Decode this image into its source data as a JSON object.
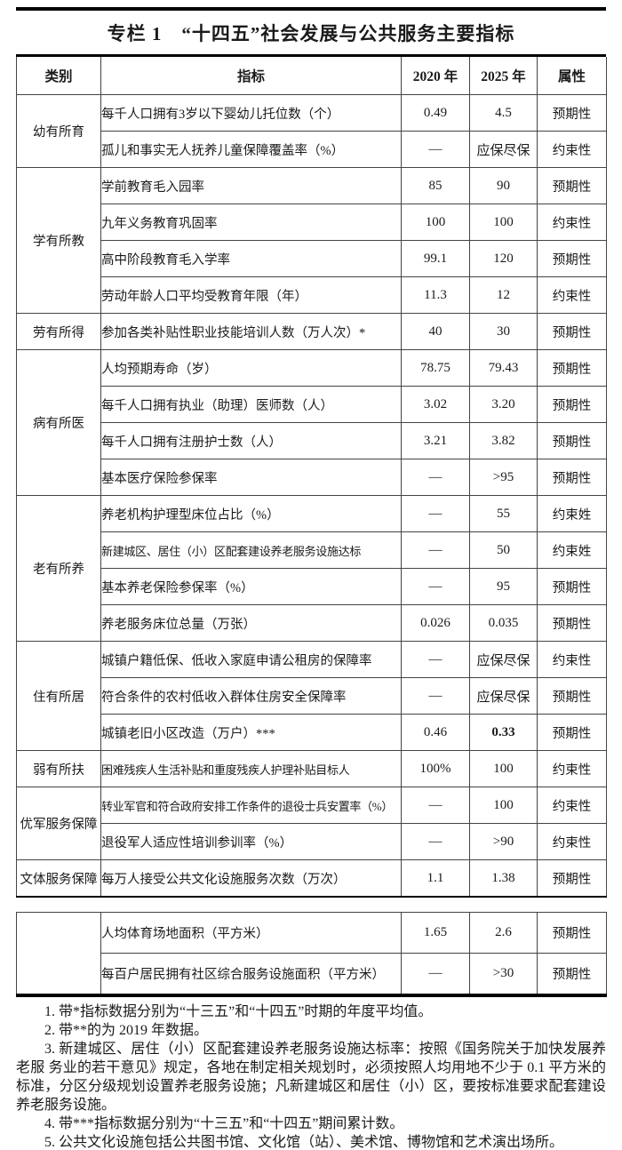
{
  "title": "专栏 1　“十四五”社会发展与公共服务主要指标",
  "table": {
    "headers": {
      "category": "类别",
      "indicator": "指标",
      "y2020": "2020 年",
      "y2025": "2025 年",
      "attribute": "属性"
    },
    "rows": [
      {
        "category": "幼有所育",
        "span": 2,
        "indicator": "每千人口拥有3岁以下婴幼儿托位数（个）",
        "v2020": "0.49",
        "v2025": "4.5",
        "attr": "预期性"
      },
      {
        "indicator": "孤儿和事实无人抚养儿童保障覆盖率（%）",
        "v2020": "—",
        "v2025": "应保尽保",
        "attr": "约束性"
      },
      {
        "category": "学有所教",
        "span": 4,
        "indicator": "学前教育毛入园率",
        "v2020": "85",
        "v2025": "90",
        "attr": "预期性"
      },
      {
        "indicator": "九年义务教育巩固率",
        "v2020": "100",
        "v2025": "100",
        "attr": "约束性"
      },
      {
        "indicator": "高中阶段教育毛入学率",
        "v2020": "99.1",
        "v2025": "120",
        "attr": "预期性"
      },
      {
        "indicator": "劳动年龄人口平均受教育年限（年）",
        "v2020": "11.3",
        "v2025": "12",
        "attr": "约束性"
      },
      {
        "category": "劳有所得",
        "span": 1,
        "indicator": "参加各类补贴性职业技能培训人数（万人次）*",
        "v2020": "40",
        "v2025": "30",
        "attr": "预期性"
      },
      {
        "category": "病有所医",
        "span": 4,
        "indicator": "人均预期寿命（岁）",
        "v2020": "78.75",
        "v2025": "79.43",
        "attr": "预期性"
      },
      {
        "indicator": "每千人口拥有执业（助理）医师数（人）",
        "v2020": "3.02",
        "v2025": "3.20",
        "attr": "预期性"
      },
      {
        "indicator": "每千人口拥有注册护士数（人）",
        "v2020": "3.21",
        "v2025": "3.82",
        "attr": "预期性"
      },
      {
        "indicator": "基本医疗保险参保率",
        "v2020": "—",
        "v2025": ">95",
        "attr": "预期性"
      },
      {
        "category": "老有所养",
        "span": 4,
        "indicator": "养老机构护理型床位占比（%）",
        "v2020": "—",
        "v2025": "55",
        "attr": "约束姓"
      },
      {
        "indicator": "新建城区、居住（小）区配套建设养老服务设施达标",
        "v2020": "—",
        "v2025": "50",
        "attr": "约束姓",
        "small": true
      },
      {
        "indicator": "基本养老保险参保率（%）",
        "v2020": "—",
        "v2025": "95",
        "attr": "预期性"
      },
      {
        "indicator": "养老服务床位总量（万张）",
        "v2020": "0.026",
        "v2025": "0.035",
        "attr": "预期性"
      },
      {
        "category": "住有所居",
        "span": 3,
        "indicator": "城镇户籍低保、低收入家庭申请公租房的保障率",
        "v2020": "—",
        "v2025": "应保尽保",
        "attr": "约束性"
      },
      {
        "indicator": "符合条件的农村低收入群体住房安全保障率",
        "v2020": "—",
        "v2025": "应保尽保",
        "attr": "预期性"
      },
      {
        "indicator": "城镇老旧小区改造（万户）***",
        "v2020": "0.46",
        "v2025": "0.33",
        "attr": "预期性",
        "bold2025": true
      },
      {
        "category": "弱有所扶",
        "span": 1,
        "indicator": "困难残疾人生活补贴和重度残疾人护理补贴目标人",
        "v2020": "100%",
        "v2025": "100",
        "attr": "约束性",
        "small": true
      },
      {
        "category": "优军服务保障",
        "span": 2,
        "indicator": "转业军官和符合政府安排工作条件的退役士兵安置率（%）",
        "v2020": "—",
        "v2025": "100",
        "attr": "约束性",
        "small": true
      },
      {
        "indicator": "退役军人适应性培训参训率（%）",
        "v2020": "—",
        "v2025": ">90",
        "attr": "约束性"
      },
      {
        "category": "文体服务保障",
        "span": 1,
        "indicator": "每万人接受公共文化设施服务次数（万次）",
        "v2020": "1.1",
        "v2025": "1.38",
        "attr": "预期性"
      }
    ],
    "rows2": [
      {
        "category": "",
        "span": 2,
        "indicator": "人均体育场地面积（平方米）",
        "v2020": "1.65",
        "v2025": "2.6",
        "attr": "预期性"
      },
      {
        "indicator": "每百户居民拥有社区综合服务设施面积（平方米）",
        "v2020": "—",
        "v2025": ">30",
        "attr": "预期性"
      }
    ]
  },
  "notes": [
    "1. 带*指标数据分别为“十三五”和“十四五”时期的年度平均值。",
    "2. 带**的为 2019 年数据。",
    "3. 新建城区、居住（小）区配套建设养老服务设施达标率：按照《国务院关于加快发展养老服 务业的若干意见》规定，各地在制定相关规划时，必须按照人均用地不少于 0.1 平方米的标准，分区分级规划设置养老服务设施；凡新建城区和居住（小）区，要按标准要求配套建设养老服务设施。",
    "4. 带***指标数据分别为“十三五”和“十四五”期间累计数。",
    "5. 公共文化设施包括公共图书馆、文化馆（站）、美术馆、博物馆和艺术演出场所。"
  ]
}
